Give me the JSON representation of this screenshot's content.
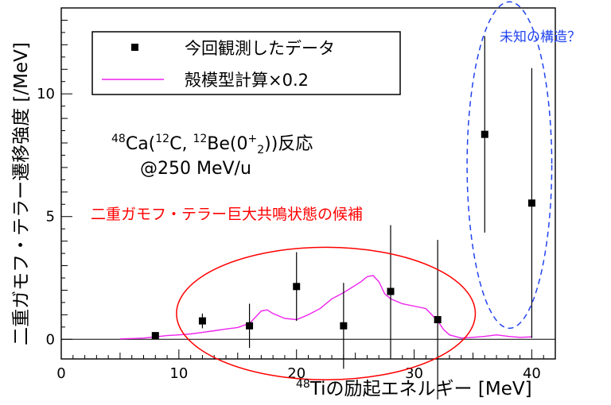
{
  "chart_data": {
    "type": "scatter",
    "xlabel": {
      "sup": "48",
      "main": "Tiの励起エネルギー [MeV]"
    },
    "ylabel": "二重ガモフ・テラー遷移強度 [/MeV]",
    "xlim": [
      0,
      42
    ],
    "ylim": [
      -0.8,
      13.5
    ],
    "x_ticks": [
      0,
      10,
      20,
      30,
      40
    ],
    "y_ticks": [
      0,
      5,
      10
    ],
    "grid": false,
    "legend_position": "top-left",
    "reaction": {
      "line1": [
        {
          "t": "48",
          "sup": true
        },
        {
          "t": "Ca("
        },
        {
          "t": "12",
          "sup": true
        },
        {
          "t": "C, "
        },
        {
          "t": "12",
          "sup": true
        },
        {
          "t": "Be(0"
        },
        {
          "t": "+",
          "sup": true
        },
        {
          "t": "2",
          "sub": true
        },
        {
          "t": "))反応"
        }
      ],
      "line2": "@250 MeV/u"
    },
    "series": [
      {
        "name": "今回観測したデータ",
        "kind": "points",
        "color": "#000000",
        "points": [
          {
            "x": 8,
            "y": 0.15,
            "err": 0.0
          },
          {
            "x": 12,
            "y": 0.75,
            "err": 0.3
          },
          {
            "x": 16,
            "y": 0.55,
            "err": 0.9
          },
          {
            "x": 20,
            "y": 2.15,
            "err": 1.4
          },
          {
            "x": 24,
            "y": 0.55,
            "err": 1.75
          },
          {
            "x": 28,
            "y": 1.95,
            "err": 2.7
          },
          {
            "x": 32,
            "y": 0.8,
            "err": 3.25
          },
          {
            "x": 36,
            "y": 8.35,
            "err": 4.0
          },
          {
            "x": 40,
            "y": 5.55,
            "err": 5.5
          }
        ]
      },
      {
        "name": "殻模型計算×0.2",
        "kind": "line",
        "color": "#ee22ee",
        "points": [
          [
            5,
            0.02
          ],
          [
            6,
            0.03
          ],
          [
            7,
            0.05
          ],
          [
            8,
            0.1
          ],
          [
            9,
            0.15
          ],
          [
            10,
            0.18
          ],
          [
            11,
            0.22
          ],
          [
            12,
            0.28
          ],
          [
            13,
            0.35
          ],
          [
            14,
            0.42
          ],
          [
            15,
            0.48
          ],
          [
            16,
            0.65
          ],
          [
            16.5,
            0.9
          ],
          [
            17,
            1.15
          ],
          [
            17.5,
            1.2
          ],
          [
            18,
            1.05
          ],
          [
            19,
            0.85
          ],
          [
            20,
            0.8
          ],
          [
            21,
            1.0
          ],
          [
            22,
            1.25
          ],
          [
            23,
            1.65
          ],
          [
            24,
            1.9
          ],
          [
            25,
            2.2
          ],
          [
            25.5,
            2.35
          ],
          [
            26,
            2.55
          ],
          [
            26.5,
            2.6
          ],
          [
            27,
            2.35
          ],
          [
            27.5,
            1.85
          ],
          [
            28,
            1.65
          ],
          [
            29,
            1.45
          ],
          [
            30,
            1.35
          ],
          [
            31,
            1.25
          ],
          [
            32,
            0.75
          ],
          [
            32.5,
            0.4
          ],
          [
            33,
            0.18
          ],
          [
            34,
            0.05
          ],
          [
            35,
            0.08
          ],
          [
            36,
            0.12
          ],
          [
            37,
            0.18
          ],
          [
            38,
            0.12
          ],
          [
            39,
            0.08
          ],
          [
            40,
            0.1
          ]
        ]
      }
    ],
    "annotations": [
      {
        "text": "二重ガモフ・テラー巨大共鳴状態の候補",
        "color": "#ff0000",
        "cx": 22.5,
        "cy": 1.05,
        "rx": 12.7,
        "ry": 2.7,
        "style": "solid"
      },
      {
        "text": "未知の構造？",
        "color": "#2244ee",
        "cx": 38.1,
        "cy": 7.1,
        "rx": 3.6,
        "ry": 6.65,
        "style": "dashed"
      }
    ]
  }
}
